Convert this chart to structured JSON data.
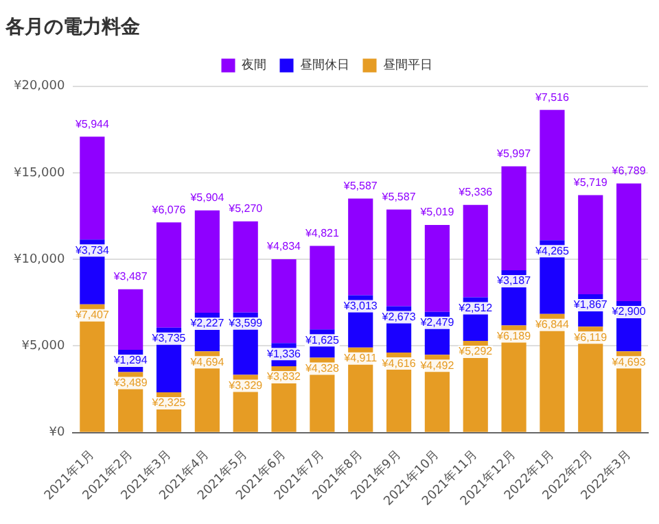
{
  "chart_data": {
    "type": "bar",
    "title": "各月の電力料金",
    "stacked": true,
    "legend": "top",
    "grid": "y",
    "categories": [
      "2021年1月",
      "2021年2月",
      "2021年3月",
      "2021年4月",
      "2021年5月",
      "2021年6月",
      "2021年7月",
      "2021年8月",
      "2021年9月",
      "2021年10月",
      "2021年11月",
      "2021年12月",
      "2022年1月",
      "2022年2月",
      "2022年3月"
    ],
    "series": [
      {
        "name": "昼間平日",
        "color": "#e69c24",
        "values": [
          7407,
          3489,
          2325,
          4694,
          3329,
          3832,
          4328,
          4911,
          4616,
          4492,
          5292,
          6189,
          6844,
          6119,
          4693
        ],
        "value_labels": [
          "¥7,407",
          "¥3,489",
          "¥2,325",
          "¥4,694",
          "¥3,329",
          "¥3,832",
          "¥4,328",
          "¥4,911",
          "¥4,616",
          "¥4,492",
          "¥5,292",
          "¥6,189",
          "¥6,844",
          "¥6,119",
          "¥4,693"
        ]
      },
      {
        "name": "昼間休日",
        "color": "#1a00ff",
        "values": [
          3734,
          1294,
          3735,
          2227,
          3599,
          1336,
          1625,
          3013,
          2673,
          2479,
          2512,
          3187,
          4265,
          1867,
          2900
        ],
        "value_labels": [
          "¥3,734",
          "¥1,294",
          "¥3,735",
          "¥2,227",
          "¥3,599",
          "¥1,336",
          "¥1,625",
          "¥3,013",
          "¥2,673",
          "¥2,479",
          "¥2,512",
          "¥3,187",
          "¥4,265",
          "¥1,867",
          "¥2,900"
        ]
      },
      {
        "name": "夜間",
        "color": "#8f00ff",
        "values": [
          5944,
          3487,
          6076,
          5904,
          5270,
          4834,
          4821,
          5587,
          5587,
          5019,
          5336,
          5997,
          7516,
          5719,
          6789
        ],
        "value_labels": [
          "¥5,944",
          "¥3,487",
          "¥6,076",
          "¥5,904",
          "¥5,270",
          "¥4,834",
          "¥4,821",
          "¥5,587",
          "¥5,587",
          "¥5,019",
          "¥5,336",
          "¥5,997",
          "¥7,516",
          "¥5,719",
          "¥6,789"
        ]
      }
    ],
    "ylim": [
      0,
      20000
    ],
    "yticks": [
      {
        "value": 0,
        "label": "¥0"
      },
      {
        "value": 5000,
        "label": "¥5,000"
      },
      {
        "value": 10000,
        "label": "¥10,000"
      },
      {
        "value": 15000,
        "label": "¥15,000"
      },
      {
        "value": 20000,
        "label": "¥20,000"
      }
    ]
  }
}
